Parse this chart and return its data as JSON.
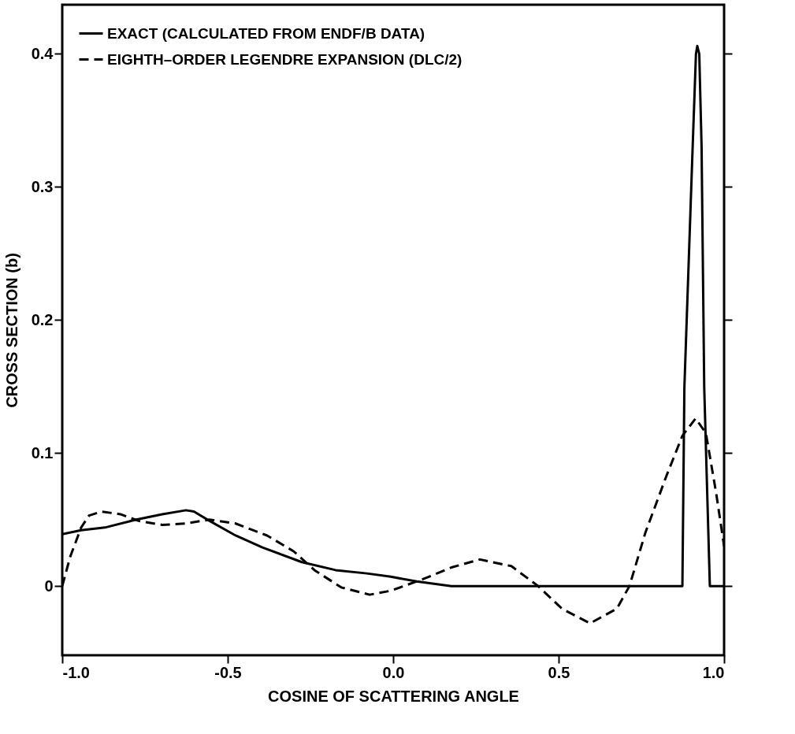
{
  "chart_data": {
    "type": "line",
    "xlabel": "COSINE OF SCATTERING ANGLE",
    "ylabel": "CROSS SECTION (b)",
    "xlim": [
      -1.0,
      1.0
    ],
    "ylim": [
      -0.052,
      0.437
    ],
    "xticks": [
      {
        "value": -1.0,
        "label": "-1.0"
      },
      {
        "value": -0.5,
        "label": "-0.5"
      },
      {
        "value": 0,
        "label": "0.0"
      },
      {
        "value": 0.5,
        "label": "0.5"
      },
      {
        "value": 1.0,
        "label": "1.0"
      }
    ],
    "yticks": [
      0,
      0.1,
      0.2,
      0.3,
      0.4
    ],
    "grid": false,
    "legend": "top left",
    "marker": "none",
    "series": [
      {
        "name": "EXACT (CALCULATED FROM ENDF/B DATA)",
        "color": "#000000",
        "line_style": "solid",
        "x": [
          -1.0,
          -0.943,
          -0.871,
          -0.776,
          -0.698,
          -0.626,
          -0.602,
          -0.555,
          -0.476,
          -0.395,
          -0.276,
          -0.174,
          -0.079,
          -0.007,
          0.071,
          0.176,
          0.874,
          0.88,
          0.905,
          0.915,
          0.919,
          0.925,
          0.932,
          0.94,
          0.957,
          1.0
        ],
        "values": [
          0.039,
          0.042,
          0.044,
          0.05,
          0.054,
          0.057,
          0.056,
          0.049,
          0.038,
          0.029,
          0.018,
          0.012,
          0.0095,
          0.007,
          0.0035,
          0.0,
          0.0,
          0.149,
          0.33,
          0.4,
          0.406,
          0.4,
          0.33,
          0.149,
          0.0,
          0.0
        ]
      },
      {
        "name": "EIGHTH–ORDER LEGENDRE EXPANSION (DLC/2)",
        "color": "#000000",
        "line_style": "dashed",
        "x": [
          -1.0,
          -0.976,
          -0.943,
          -0.919,
          -0.881,
          -0.824,
          -0.769,
          -0.698,
          -0.626,
          -0.555,
          -0.476,
          -0.381,
          -0.3,
          -0.238,
          -0.157,
          -0.071,
          -0.007,
          0.088,
          0.176,
          0.262,
          0.357,
          0.438,
          0.51,
          0.595,
          0.676,
          0.714,
          0.762,
          0.826,
          0.874,
          0.914,
          0.945,
          0.976,
          1.0
        ],
        "values": [
          0.0,
          0.022,
          0.044,
          0.053,
          0.056,
          0.054,
          0.049,
          0.046,
          0.047,
          0.05,
          0.047,
          0.038,
          0.026,
          0.012,
          -0.001,
          -0.0065,
          -0.0035,
          0.005,
          0.014,
          0.02,
          0.015,
          0.0,
          -0.017,
          -0.028,
          -0.017,
          0.0,
          0.04,
          0.083,
          0.113,
          0.126,
          0.115,
          0.07,
          0.03
        ]
      }
    ]
  }
}
